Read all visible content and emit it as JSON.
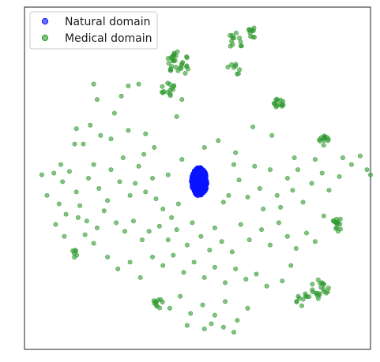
{
  "chart_data": {
    "type": "scatter",
    "title": "",
    "xlabel": "",
    "ylabel": "",
    "xlim": [
      0,
      100
    ],
    "ylim": [
      0,
      100
    ],
    "axis_ticks": "none",
    "grid": false,
    "legend_placement": "top-left",
    "series": [
      {
        "name": "Natural domain",
        "color": "#0a14ff",
        "marker": "circle",
        "cluster": {
          "center": [
            50.5,
            49.0
          ],
          "radius_x": 2.3,
          "radius_y": 4.2,
          "count": 380
        }
      },
      {
        "name": "Medical domain",
        "color": "#2e9a2e",
        "marker": "circle",
        "clusters": [
          {
            "center": [
              44.5,
              83.5
            ],
            "radius": 3.5,
            "count": 30
          },
          {
            "center": [
              41.5,
              76.0
            ],
            "radius": 2.0,
            "count": 14
          },
          {
            "center": [
              61.0,
              90.0
            ],
            "radius": 2.5,
            "count": 12
          },
          {
            "center": [
              66.0,
              92.5
            ],
            "radius": 1.5,
            "count": 10
          },
          {
            "center": [
              60.5,
              81.5
            ],
            "radius": 2.0,
            "count": 8
          },
          {
            "center": [
              73.5,
              72.0
            ],
            "radius": 1.5,
            "count": 14
          },
          {
            "center": [
              86.5,
              61.0
            ],
            "radius": 1.5,
            "count": 12
          },
          {
            "center": [
              90.5,
              36.5
            ],
            "radius": 2.0,
            "count": 14
          },
          {
            "center": [
              85.5,
              17.5
            ],
            "radius": 3.0,
            "count": 20
          },
          {
            "center": [
              80.5,
              14.5
            ],
            "radius": 2.0,
            "count": 10
          },
          {
            "center": [
              38.5,
              13.5
            ],
            "radius": 1.5,
            "count": 10
          },
          {
            "center": [
              14.5,
              28.0
            ],
            "radius": 1.2,
            "count": 6
          }
        ],
        "scattered_points": [
          [
            20.0,
            77.5
          ],
          [
            30.0,
            77.0
          ],
          [
            33.0,
            77.5
          ],
          [
            28.0,
            74.0
          ],
          [
            21.0,
            73.0
          ],
          [
            19.0,
            65.5
          ],
          [
            26.0,
            69.0
          ],
          [
            15.0,
            64.5
          ],
          [
            14.5,
            60.0
          ],
          [
            17.0,
            60.0
          ],
          [
            22.0,
            62.5
          ],
          [
            25.0,
            61.5
          ],
          [
            30.0,
            64.0
          ],
          [
            35.0,
            63.0
          ],
          [
            44.0,
            68.0
          ],
          [
            45.5,
            73.0
          ],
          [
            56.0,
            61.0
          ],
          [
            52.0,
            59.0
          ],
          [
            61.0,
            57.5
          ],
          [
            66.0,
            65.0
          ],
          [
            71.5,
            62.5
          ],
          [
            78.0,
            56.0
          ],
          [
            84.0,
            55.5
          ],
          [
            92.0,
            56.0
          ],
          [
            94.5,
            54.0
          ],
          [
            97.0,
            56.5
          ],
          [
            99.0,
            52.5
          ],
          [
            100.0,
            51.0
          ],
          [
            5.0,
            51.0
          ],
          [
            8.5,
            51.5
          ],
          [
            10.5,
            54.0
          ],
          [
            11.0,
            49.0
          ],
          [
            13.0,
            52.0
          ],
          [
            15.0,
            46.0
          ],
          [
            16.0,
            42.0
          ],
          [
            18.5,
            50.0
          ],
          [
            20.0,
            54.0
          ],
          [
            21.5,
            47.0
          ],
          [
            24.0,
            43.5
          ],
          [
            25.0,
            52.5
          ],
          [
            27.5,
            49.0
          ],
          [
            28.5,
            56.0
          ],
          [
            30.5,
            45.0
          ],
          [
            32.0,
            48.5
          ],
          [
            33.0,
            53.5
          ],
          [
            35.0,
            46.0
          ],
          [
            37.0,
            50.0
          ],
          [
            38.0,
            44.0
          ],
          [
            40.0,
            41.0
          ],
          [
            42.5,
            38.5
          ],
          [
            44.5,
            42.5
          ],
          [
            45.5,
            55.5
          ],
          [
            41.5,
            51.0
          ],
          [
            34.5,
            57.0
          ],
          [
            37.5,
            59.0
          ],
          [
            57.5,
            43.0
          ],
          [
            59.0,
            45.0
          ],
          [
            60.5,
            54.0
          ],
          [
            62.0,
            49.5
          ],
          [
            64.5,
            44.5
          ],
          [
            66.5,
            53.5
          ],
          [
            68.0,
            47.0
          ],
          [
            69.0,
            41.0
          ],
          [
            71.0,
            52.5
          ],
          [
            73.0,
            45.0
          ],
          [
            74.0,
            41.5
          ],
          [
            76.0,
            50.0
          ],
          [
            77.5,
            46.5
          ],
          [
            79.0,
            52.5
          ],
          [
            80.5,
            43.0
          ],
          [
            83.0,
            48.5
          ],
          [
            86.0,
            51.5
          ],
          [
            88.0,
            46.5
          ],
          [
            91.0,
            50.5
          ],
          [
            6.5,
            45.0
          ],
          [
            10.0,
            42.5
          ],
          [
            12.0,
            39.5
          ],
          [
            15.5,
            38.5
          ],
          [
            18.0,
            37.5
          ],
          [
            21.0,
            35.5
          ],
          [
            23.0,
            40.5
          ],
          [
            26.5,
            37.0
          ],
          [
            29.0,
            34.5
          ],
          [
            31.5,
            37.5
          ],
          [
            34.0,
            32.0
          ],
          [
            36.0,
            34.5
          ],
          [
            39.0,
            36.0
          ],
          [
            41.5,
            32.0
          ],
          [
            44.0,
            35.0
          ],
          [
            47.0,
            30.5
          ],
          [
            48.5,
            37.0
          ],
          [
            51.0,
            33.0
          ],
          [
            53.5,
            29.0
          ],
          [
            55.0,
            35.5
          ],
          [
            57.0,
            31.5
          ],
          [
            60.0,
            28.5
          ],
          [
            62.5,
            36.5
          ],
          [
            65.0,
            32.0
          ],
          [
            68.5,
            35.0
          ],
          [
            71.0,
            30.5
          ],
          [
            73.5,
            37.0
          ],
          [
            76.0,
            33.0
          ],
          [
            78.5,
            29.5
          ],
          [
            81.5,
            34.0
          ],
          [
            84.0,
            31.5
          ],
          [
            86.5,
            39.0
          ],
          [
            37.0,
            27.0
          ],
          [
            40.0,
            24.5
          ],
          [
            43.0,
            27.5
          ],
          [
            46.0,
            22.5
          ],
          [
            49.0,
            25.5
          ],
          [
            52.0,
            21.0
          ],
          [
            55.0,
            24.0
          ],
          [
            58.0,
            19.5
          ],
          [
            61.0,
            23.5
          ],
          [
            64.0,
            20.5
          ],
          [
            67.0,
            22.0
          ],
          [
            70.0,
            18.5
          ],
          [
            74.5,
            20.0
          ],
          [
            77.0,
            24.5
          ],
          [
            42.0,
            12.0
          ],
          [
            45.0,
            15.5
          ],
          [
            48.0,
            10.5
          ],
          [
            51.5,
            13.0
          ],
          [
            55.0,
            10.0
          ],
          [
            58.0,
            14.0
          ],
          [
            61.5,
            8.5
          ],
          [
            64.5,
            12.0
          ],
          [
            52.0,
            6.0
          ],
          [
            54.0,
            7.5
          ],
          [
            57.5,
            6.5
          ],
          [
            60.5,
            5.0
          ],
          [
            47.0,
            7.0
          ],
          [
            24.0,
            27.0
          ],
          [
            27.0,
            23.5
          ],
          [
            30.5,
            25.5
          ],
          [
            33.5,
            21.0
          ],
          [
            20.0,
            31.0
          ],
          [
            17.5,
            33.5
          ],
          [
            11.5,
            33.0
          ],
          [
            9.0,
            36.5
          ]
        ]
      }
    ]
  }
}
